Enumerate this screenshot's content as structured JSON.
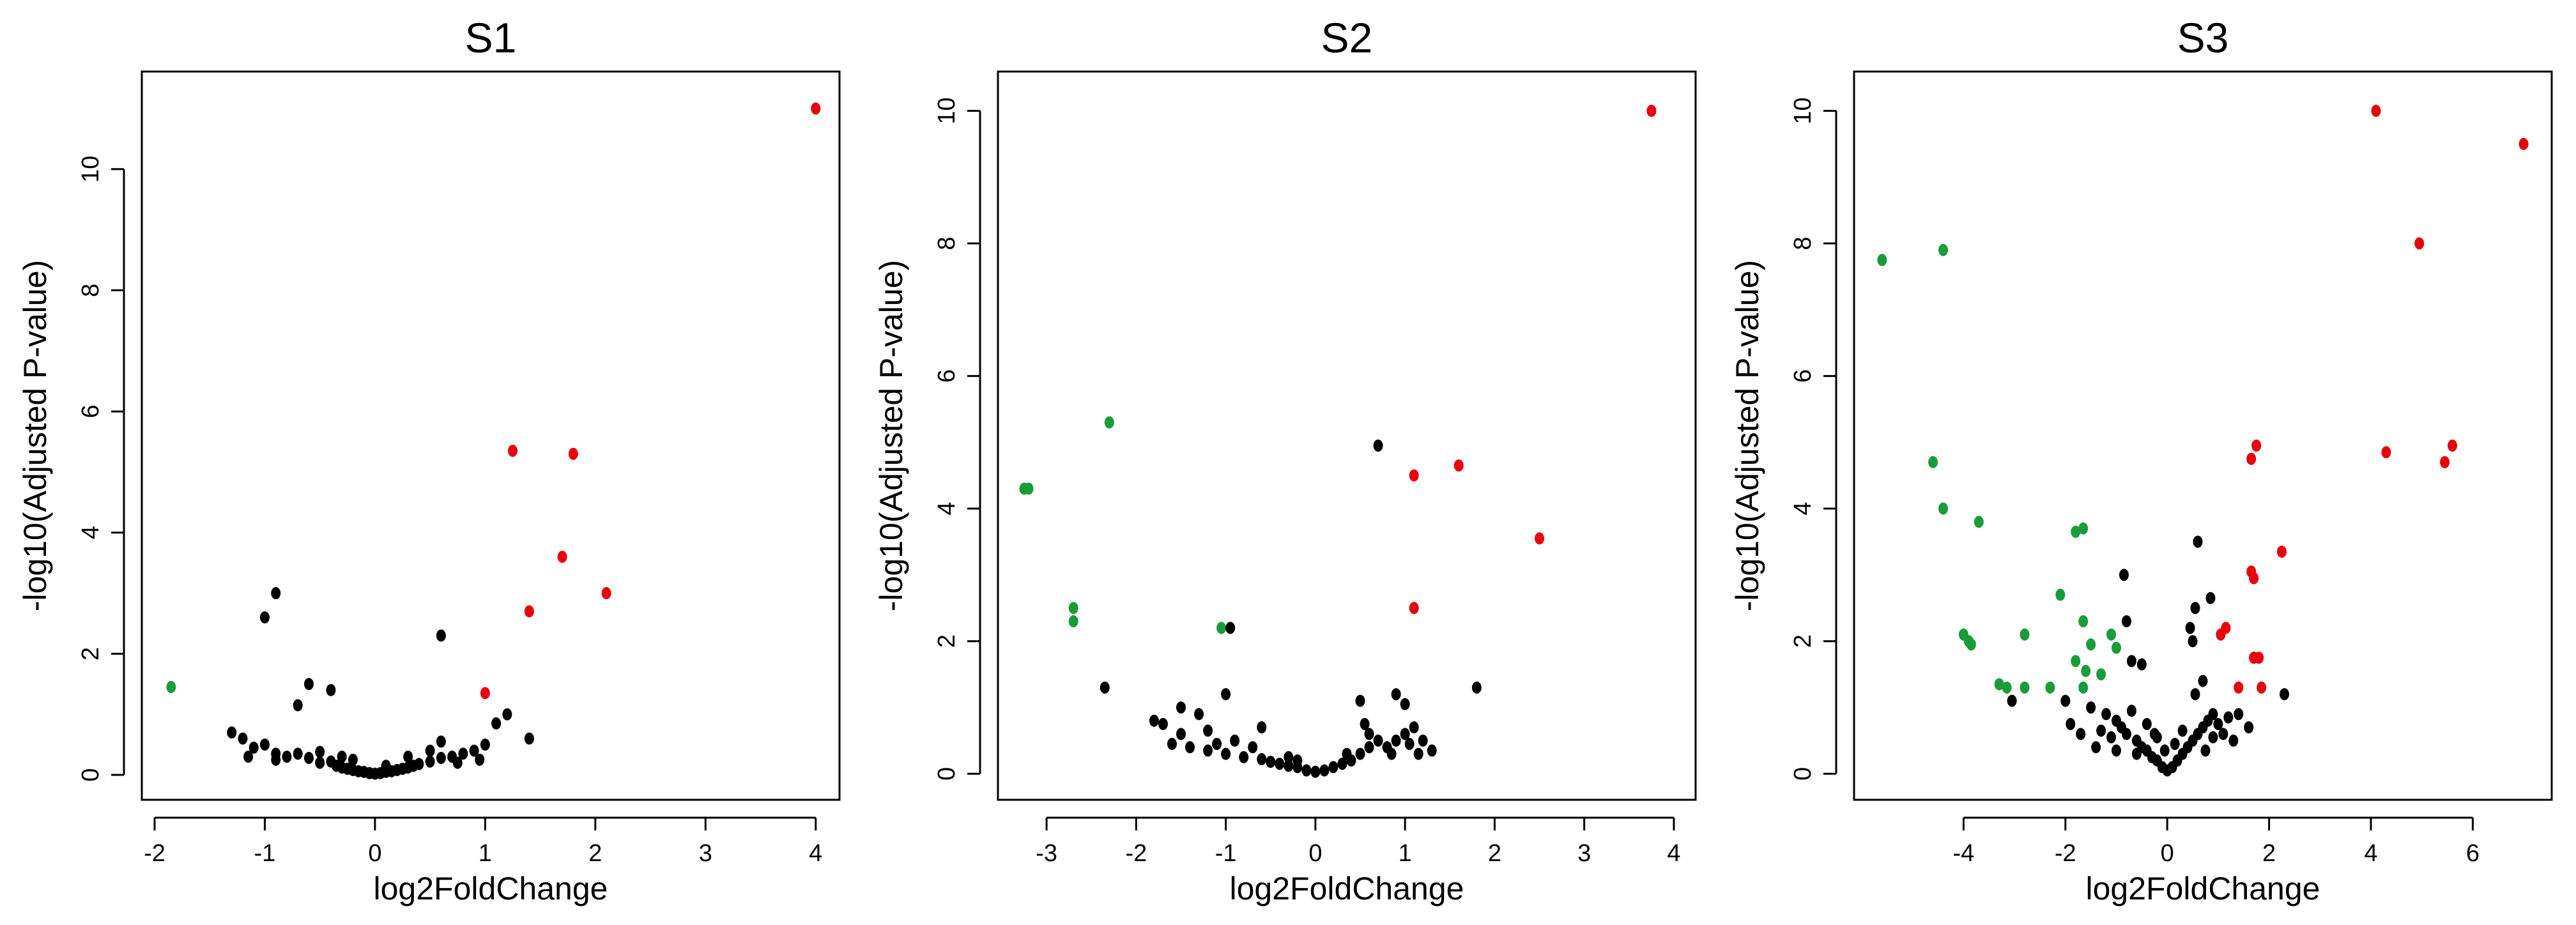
{
  "colors": {
    "up": "#e8000b",
    "down": "#1a9c3a",
    "ns": "#000000",
    "axis": "#000000"
  },
  "chart_data": [
    {
      "type": "scatter",
      "title": "S1",
      "xlabel": "log2FoldChange",
      "ylabel": "-log10(Adjusted P-value)",
      "xlim": [
        -2,
        4.1
      ],
      "ylim": [
        -0.2,
        11.4
      ],
      "xticks": [
        -2,
        -1,
        0,
        1,
        2,
        3,
        4
      ],
      "yticks": [
        0,
        2,
        4,
        6,
        8,
        10
      ],
      "grid": false,
      "series": [
        {
          "color_key": "up",
          "points": [
            [
              4.0,
              11.0
            ],
            [
              1.25,
              5.35
            ],
            [
              1.8,
              5.3
            ],
            [
              1.7,
              3.6
            ],
            [
              2.1,
              3.0
            ],
            [
              1.4,
              2.7
            ],
            [
              1.0,
              1.35
            ]
          ]
        },
        {
          "color_key": "down",
          "points": [
            [
              -1.85,
              1.45
            ]
          ]
        },
        {
          "color_key": "ns",
          "points": [
            [
              -0.9,
              3.0
            ],
            [
              -1.0,
              2.6
            ],
            [
              0.6,
              2.3
            ],
            [
              -0.6,
              1.5
            ],
            [
              -0.4,
              1.4
            ],
            [
              -0.7,
              1.15
            ],
            [
              1.2,
              1.0
            ],
            [
              1.1,
              0.85
            ],
            [
              1.4,
              0.6
            ],
            [
              -1.3,
              0.7
            ],
            [
              -1.2,
              0.6
            ],
            [
              -1.1,
              0.45
            ],
            [
              -1.0,
              0.5
            ],
            [
              -0.9,
              0.35
            ],
            [
              -0.8,
              0.3
            ],
            [
              -0.7,
              0.35
            ],
            [
              -0.6,
              0.28
            ],
            [
              -0.5,
              0.2
            ],
            [
              -0.4,
              0.22
            ],
            [
              -0.35,
              0.15
            ],
            [
              -0.3,
              0.12
            ],
            [
              -0.25,
              0.1
            ],
            [
              -0.2,
              0.08
            ],
            [
              -0.15,
              0.06
            ],
            [
              -0.1,
              0.05
            ],
            [
              -0.05,
              0.03
            ],
            [
              0.0,
              0.02
            ],
            [
              0.05,
              0.03
            ],
            [
              0.1,
              0.05
            ],
            [
              0.15,
              0.06
            ],
            [
              0.2,
              0.08
            ],
            [
              0.25,
              0.1
            ],
            [
              0.3,
              0.12
            ],
            [
              0.35,
              0.15
            ],
            [
              0.4,
              0.18
            ],
            [
              0.5,
              0.22
            ],
            [
              0.6,
              0.28
            ],
            [
              0.7,
              0.3
            ],
            [
              0.8,
              0.35
            ],
            [
              0.9,
              0.4
            ],
            [
              1.0,
              0.5
            ],
            [
              0.5,
              0.4
            ],
            [
              0.6,
              0.55
            ],
            [
              0.3,
              0.3
            ],
            [
              -0.2,
              0.25
            ],
            [
              -0.5,
              0.38
            ],
            [
              -0.9,
              0.25
            ],
            [
              -1.15,
              0.3
            ],
            [
              0.75,
              0.2
            ],
            [
              0.95,
              0.25
            ],
            [
              -0.3,
              0.3
            ],
            [
              0.1,
              0.15
            ]
          ]
        }
      ]
    },
    {
      "type": "scatter",
      "title": "S2",
      "xlabel": "log2FoldChange",
      "ylabel": "-log10(Adjusted P-value)",
      "xlim": [
        -3.4,
        4.1
      ],
      "ylim": [
        -0.2,
        10.4
      ],
      "xticks": [
        -3,
        -2,
        -1,
        0,
        1,
        2,
        3,
        4
      ],
      "yticks": [
        0,
        2,
        4,
        6,
        8,
        10
      ],
      "grid": false,
      "series": [
        {
          "color_key": "up",
          "points": [
            [
              3.75,
              10.0
            ],
            [
              1.6,
              4.65
            ],
            [
              1.1,
              4.5
            ],
            [
              2.5,
              3.55
            ],
            [
              1.1,
              2.5
            ]
          ]
        },
        {
          "color_key": "down",
          "points": [
            [
              -2.3,
              5.3
            ],
            [
              -3.2,
              4.3
            ],
            [
              -3.25,
              4.3
            ],
            [
              -2.7,
              2.5
            ],
            [
              -2.7,
              2.3
            ],
            [
              -1.05,
              2.2
            ]
          ]
        },
        {
          "color_key": "ns",
          "points": [
            [
              0.7,
              4.95
            ],
            [
              -0.95,
              2.2
            ],
            [
              -2.35,
              1.3
            ],
            [
              1.8,
              1.3
            ],
            [
              -1.0,
              1.2
            ],
            [
              0.5,
              1.1
            ],
            [
              0.9,
              1.2
            ],
            [
              1.0,
              1.05
            ],
            [
              -1.8,
              0.8
            ],
            [
              -1.7,
              0.75
            ],
            [
              -1.5,
              1.0
            ],
            [
              -1.3,
              0.9
            ],
            [
              -1.2,
              0.65
            ],
            [
              -1.5,
              0.6
            ],
            [
              -1.6,
              0.45
            ],
            [
              -1.4,
              0.4
            ],
            [
              -1.2,
              0.35
            ],
            [
              -1.0,
              0.3
            ],
            [
              -0.8,
              0.25
            ],
            [
              -0.6,
              0.22
            ],
            [
              -0.5,
              0.18
            ],
            [
              -0.4,
              0.15
            ],
            [
              -0.3,
              0.12
            ],
            [
              -0.2,
              0.1
            ],
            [
              -0.1,
              0.05
            ],
            [
              0.0,
              0.03
            ],
            [
              0.1,
              0.05
            ],
            [
              0.2,
              0.1
            ],
            [
              0.3,
              0.15
            ],
            [
              0.4,
              0.2
            ],
            [
              0.5,
              0.3
            ],
            [
              0.6,
              0.4
            ],
            [
              0.7,
              0.5
            ],
            [
              0.8,
              0.4
            ],
            [
              0.9,
              0.5
            ],
            [
              1.0,
              0.6
            ],
            [
              1.1,
              0.7
            ],
            [
              1.2,
              0.5
            ],
            [
              1.3,
              0.35
            ],
            [
              1.15,
              0.3
            ],
            [
              0.6,
              0.6
            ],
            [
              0.55,
              0.75
            ],
            [
              -0.7,
              0.4
            ],
            [
              -0.9,
              0.5
            ],
            [
              -0.6,
              0.7
            ],
            [
              -1.1,
              0.45
            ],
            [
              -0.3,
              0.25
            ],
            [
              0.35,
              0.3
            ],
            [
              -0.2,
              0.2
            ],
            [
              0.85,
              0.3
            ],
            [
              1.05,
              0.45
            ]
          ]
        }
      ]
    },
    {
      "type": "scatter",
      "title": "S3",
      "xlabel": "log2FoldChange",
      "ylabel": "-log10(Adjusted P-value)",
      "xlim": [
        -5.9,
        7.3
      ],
      "ylim": [
        -0.2,
        10.4
      ],
      "xticks": [
        -4,
        -2,
        0,
        2,
        4,
        6
      ],
      "yticks": [
        0,
        2,
        4,
        6,
        8,
        10
      ],
      "grid": false,
      "series": [
        {
          "color_key": "up",
          "points": [
            [
              4.1,
              10.0
            ],
            [
              7.0,
              9.5
            ],
            [
              4.95,
              8.0
            ],
            [
              1.75,
              4.95
            ],
            [
              1.65,
              4.75
            ],
            [
              4.3,
              4.85
            ],
            [
              5.6,
              4.95
            ],
            [
              5.45,
              4.7
            ],
            [
              2.25,
              3.35
            ],
            [
              1.65,
              3.05
            ],
            [
              1.7,
              2.95
            ],
            [
              1.15,
              2.2
            ],
            [
              1.05,
              2.1
            ],
            [
              1.7,
              1.75
            ],
            [
              1.8,
              1.75
            ],
            [
              1.4,
              1.3
            ],
            [
              1.85,
              1.3
            ]
          ]
        },
        {
          "color_key": "down",
          "points": [
            [
              -5.6,
              7.75
            ],
            [
              -4.4,
              7.9
            ],
            [
              -4.6,
              4.7
            ],
            [
              -4.4,
              4.0
            ],
            [
              -3.7,
              3.8
            ],
            [
              -1.8,
              3.65
            ],
            [
              -1.65,
              3.7
            ],
            [
              -2.1,
              2.7
            ],
            [
              -4.0,
              2.1
            ],
            [
              -3.9,
              2.0
            ],
            [
              -3.85,
              1.95
            ],
            [
              -2.8,
              2.1
            ],
            [
              -1.65,
              2.3
            ],
            [
              -1.1,
              2.1
            ],
            [
              -1.5,
              1.95
            ],
            [
              -1.0,
              1.9
            ],
            [
              -1.8,
              1.7
            ],
            [
              -1.6,
              1.55
            ],
            [
              -1.3,
              1.5
            ],
            [
              -3.3,
              1.35
            ],
            [
              -3.15,
              1.3
            ],
            [
              -2.3,
              1.3
            ],
            [
              -1.65,
              1.3
            ],
            [
              -2.8,
              1.3
            ]
          ]
        },
        {
          "color_key": "ns",
          "points": [
            [
              0.6,
              3.5
            ],
            [
              -0.85,
              3.0
            ],
            [
              0.85,
              2.65
            ],
            [
              0.55,
              2.5
            ],
            [
              0.45,
              2.2
            ],
            [
              -0.8,
              2.3
            ],
            [
              0.5,
              2.0
            ],
            [
              -0.7,
              1.7
            ],
            [
              -0.5,
              1.65
            ],
            [
              2.3,
              1.2
            ],
            [
              0.7,
              1.4
            ],
            [
              0.55,
              1.2
            ],
            [
              -3.05,
              1.1
            ],
            [
              -2.0,
              1.1
            ],
            [
              -1.5,
              1.0
            ],
            [
              -1.2,
              0.9
            ],
            [
              -1.0,
              0.8
            ],
            [
              -0.9,
              0.7
            ],
            [
              -0.8,
              0.6
            ],
            [
              -0.6,
              0.5
            ],
            [
              -0.5,
              0.4
            ],
            [
              -0.4,
              0.35
            ],
            [
              -0.3,
              0.25
            ],
            [
              -0.2,
              0.2
            ],
            [
              -0.1,
              0.1
            ],
            [
              0.0,
              0.05
            ],
            [
              0.1,
              0.1
            ],
            [
              0.2,
              0.2
            ],
            [
              0.3,
              0.3
            ],
            [
              0.4,
              0.4
            ],
            [
              0.5,
              0.5
            ],
            [
              0.6,
              0.6
            ],
            [
              0.7,
              0.7
            ],
            [
              0.8,
              0.8
            ],
            [
              0.9,
              0.9
            ],
            [
              1.0,
              0.75
            ],
            [
              1.2,
              0.85
            ],
            [
              1.4,
              0.9
            ],
            [
              1.6,
              0.7
            ],
            [
              1.1,
              0.6
            ],
            [
              0.9,
              0.55
            ],
            [
              -1.1,
              0.55
            ],
            [
              -1.3,
              0.65
            ],
            [
              -1.7,
              0.6
            ],
            [
              -1.9,
              0.75
            ],
            [
              -0.7,
              0.95
            ],
            [
              -0.4,
              0.75
            ],
            [
              -0.2,
              0.55
            ],
            [
              0.3,
              0.65
            ],
            [
              0.15,
              0.45
            ],
            [
              -0.6,
              0.3
            ],
            [
              -1.4,
              0.4
            ],
            [
              -1.0,
              0.35
            ],
            [
              0.75,
              0.35
            ],
            [
              1.3,
              0.5
            ],
            [
              -0.25,
              0.6
            ],
            [
              -0.05,
              0.35
            ]
          ]
        }
      ]
    }
  ]
}
